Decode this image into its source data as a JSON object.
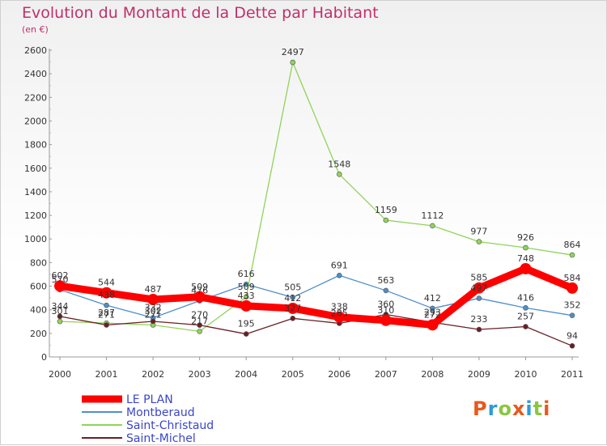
{
  "title": "Evolution du Montant de la Dette par Habitant",
  "subtitle": "(en €)",
  "logo": {
    "text": "Proxiti",
    "letters": [
      {
        "ch": "P",
        "color": "#e8581c"
      },
      {
        "ch": "r",
        "color": "#2d9ad6"
      },
      {
        "ch": "o",
        "color": "#8cc63f"
      },
      {
        "ch": "x",
        "color": "#e8581c"
      },
      {
        "ch": "i",
        "color": "#2d9ad6"
      },
      {
        "ch": "t",
        "color": "#8cc63f"
      },
      {
        "ch": "i",
        "color": "#e8581c"
      }
    ]
  },
  "chart_data": {
    "type": "line",
    "title": "Evolution du Montant de la Dette par Habitant",
    "subtitle": "(en €)",
    "xlabel": "",
    "ylabel": "",
    "x": [
      "2000",
      "2001",
      "2002",
      "2003",
      "2004",
      "2005",
      "2006",
      "2007",
      "2008",
      "2009",
      "2010",
      "2011"
    ],
    "ylim": [
      0,
      2600
    ],
    "yticks": [
      0,
      200,
      400,
      600,
      800,
      1000,
      1200,
      1400,
      1600,
      1800,
      2000,
      2200,
      2400,
      2600
    ],
    "grid": false,
    "legend_position": "bottom-left",
    "series": [
      {
        "name": "LE PLAN",
        "color": "#ff0000",
        "values": [
          602,
          544,
          487,
          509,
          433,
          412,
          338,
          310,
          272,
          585,
          748,
          584
        ]
      },
      {
        "name": "Montberaud",
        "color": "#4f8fc9",
        "values": [
          570,
          438,
          332,
          476,
          616,
          505,
          691,
          563,
          412,
          497,
          416,
          352
        ]
      },
      {
        "name": "Saint-Christaud",
        "color": "#8fd45a",
        "values": [
          301,
          287,
          271,
          217,
          509,
          2497,
          1548,
          1159,
          1112,
          977,
          926,
          864
        ]
      },
      {
        "name": "Saint-Michel",
        "color": "#6b1f24",
        "values": [
          344,
          271,
          302,
          270,
          195,
          327,
          285,
          360,
          293,
          233,
          257,
          94
        ]
      }
    ],
    "labels": [
      [
        602,
        544,
        487,
        509,
        433,
        412,
        338,
        310,
        272,
        585,
        748,
        584
      ],
      [
        570,
        438,
        332,
        476,
        616,
        505,
        691,
        563,
        412,
        497,
        416,
        352
      ],
      [
        301,
        287,
        271,
        217,
        509,
        2497,
        1548,
        1159,
        1112,
        977,
        926,
        864
      ],
      [
        344,
        271,
        302,
        270,
        195,
        327,
        285,
        360,
        293,
        233,
        257,
        94
      ]
    ]
  }
}
